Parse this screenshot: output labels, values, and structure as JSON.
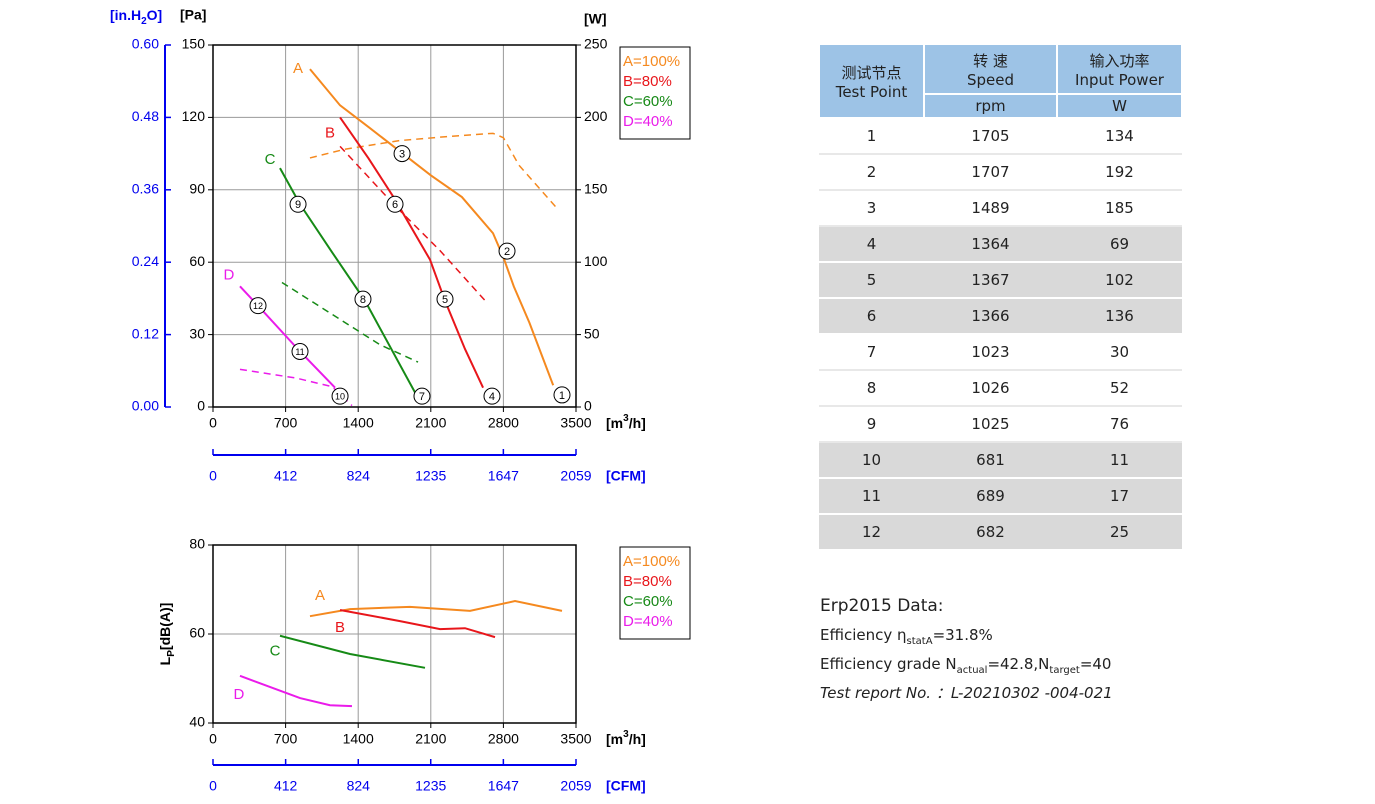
{
  "chart_data": [
    {
      "type": "line",
      "xlabel": [
        "[m",
        "3",
        "/h]"
      ],
      "xlim": [
        0,
        3500
      ],
      "xticks": [
        0,
        700,
        1400,
        2100,
        2800,
        3500
      ],
      "ylabel": "[Pa]",
      "ylim": [
        0,
        150
      ],
      "yticks": [
        0,
        30,
        60,
        90,
        120,
        150
      ],
      "y_alt_label": [
        "[in.H",
        "2",
        "O]"
      ],
      "y_alt_lim": [
        0,
        0.6
      ],
      "y_alt_ticks": [
        {
          "value": 0,
          "label": "0.00"
        },
        0.12,
        0.24,
        0.36,
        0.48,
        {
          "value": 0.6,
          "label": "0.60"
        }
      ],
      "y2label": "[W]",
      "y2lim": [
        0,
        250
      ],
      "y2ticks": [
        0,
        50,
        100,
        150,
        200,
        250
      ],
      "x_alt_label": "[CFM]",
      "x_alt_lim": [
        0,
        2059
      ],
      "x_alt_ticks": [
        0,
        412,
        824,
        1235,
        1647,
        2059
      ],
      "grid": true,
      "series": [
        {
          "label": "A",
          "name": "A=100%",
          "color": "#f5891f",
          "x": [
            935,
            1225,
            1500,
            1800,
            2100,
            2400,
            2700,
            2800,
            2900,
            3050,
            3280
          ],
          "values": [
            140,
            125,
            116,
            106,
            96,
            87,
            72,
            62,
            50,
            35,
            9
          ],
          "power": {
            "x": [
              935,
              1270,
              1800,
              2300,
              2700,
              2800,
              2950,
              3320
            ],
            "values": [
              172,
              178,
              184,
              187,
              189,
              186,
              167,
              137
            ]
          }
        },
        {
          "label": "B",
          "name": "B=80%",
          "color": "#e8161b",
          "x": [
            1225,
            1500,
            1755,
            2093,
            2237,
            2430,
            2604
          ],
          "values": [
            120,
            103,
            86,
            61,
            44,
            24,
            8
          ],
          "power": {
            "x": [
              1225,
              1755,
              2189,
              2642
            ],
            "values": [
              180,
              139,
              108,
              72
            ]
          }
        },
        {
          "label": "C",
          "name": "C=60%",
          "color": "#168a16",
          "x": [
            646,
            839,
            1150,
            1466,
            1948
          ],
          "values": [
            99,
            84,
            64,
            44,
            6
          ],
          "power": {
            "x": [
              665,
              1610,
              1977
            ],
            "values": [
              86,
              43,
              31
            ]
          }
        },
        {
          "label": "D",
          "name": "D=40%",
          "color": "#ea1bea",
          "x": [
            260,
            434,
            839,
            1177
          ],
          "values": [
            50,
            42,
            23,
            8
          ],
          "power": {
            "x": [
              260,
              800,
              1150,
              1340
            ],
            "values": [
              26,
              20,
              14,
              1
            ]
          }
        }
      ],
      "points": [
        {
          "label": "1",
          "x": 3365,
          "y": 5
        },
        {
          "label": "2",
          "x": 2835,
          "y": 64.6
        },
        {
          "label": "3",
          "x": 1823,
          "y": 105
        },
        {
          "label": "4",
          "x": 2690,
          "y": 4.5
        },
        {
          "label": "5",
          "x": 2237,
          "y": 44.7
        },
        {
          "label": "6",
          "x": 1755,
          "y": 84
        },
        {
          "label": "7",
          "x": 2015,
          "y": 4.5
        },
        {
          "label": "8",
          "x": 1446,
          "y": 44.7
        },
        {
          "label": "9",
          "x": 820,
          "y": 84
        },
        {
          "label": "10",
          "x": 1225,
          "y": 4.5
        },
        {
          "label": "11",
          "x": 839,
          "y": 23
        },
        {
          "label": "12",
          "x": 434,
          "y": 42
        }
      ]
    },
    {
      "type": "line",
      "xlabel": [
        "[m",
        "3",
        "/h]"
      ],
      "xlim": [
        0,
        3500
      ],
      "xticks": [
        0,
        700,
        1400,
        2100,
        2800,
        3500
      ],
      "ylabel": [
        "L",
        "P",
        "[dB(A)]"
      ],
      "ylim": [
        40,
        80
      ],
      "yticks": [
        40,
        60,
        80
      ],
      "x_alt_label": "[CFM]",
      "x_alt_lim": [
        0,
        2059
      ],
      "x_alt_ticks": [
        0,
        412,
        824,
        1235,
        1647,
        2059
      ],
      "grid": true,
      "series": [
        {
          "label": "A",
          "name": "A=100%",
          "color": "#f5891f",
          "x": [
            935,
            1321,
            1900,
            2478,
            2912,
            3365
          ],
          "values": [
            64.0,
            65.6,
            66.1,
            65.2,
            67.4,
            65.2
          ]
        },
        {
          "label": "B",
          "name": "B=80%",
          "color": "#e8161b",
          "x": [
            1225,
            1803,
            2189,
            2430,
            2719
          ],
          "values": [
            65.4,
            62.9,
            61.1,
            61.3,
            59.3
          ]
        },
        {
          "label": "C",
          "name": "C=60%",
          "color": "#168a16",
          "x": [
            646,
            1321,
            2044
          ],
          "values": [
            59.6,
            55.5,
            52.4
          ]
        },
        {
          "label": "D",
          "name": "D=40%",
          "color": "#ea1bea",
          "x": [
            260,
            839,
            1128,
            1340
          ],
          "values": [
            50.6,
            45.6,
            44.0,
            43.8
          ]
        }
      ]
    }
  ],
  "table": {
    "header": [
      [
        "测试节点",
        "Test Point"
      ],
      [
        "转 速",
        "Speed",
        "rpm"
      ],
      [
        "输入功率",
        "Input Power",
        "W"
      ]
    ],
    "rows": [
      [
        1,
        1705,
        134
      ],
      [
        2,
        1707,
        192
      ],
      [
        3,
        1489,
        185
      ],
      [
        4,
        1364,
        69
      ],
      [
        5,
        1367,
        102
      ],
      [
        6,
        1366,
        136
      ],
      [
        7,
        1023,
        30
      ],
      [
        8,
        1026,
        52
      ],
      [
        9,
        1025,
        76
      ],
      [
        10,
        681,
        11
      ],
      [
        11,
        689,
        17
      ],
      [
        12,
        682,
        25
      ]
    ]
  },
  "notes": [
    [
      "Erp2015  Data:"
    ],
    [
      "Efficiency η",
      {
        "sub": "statA"
      },
      "=31.8%"
    ],
    [
      "Efficiency grade  N",
      {
        "sub": "actual"
      },
      "=42.8,N",
      {
        "sub": "target"
      },
      "=40"
    ]
  ],
  "report": "Test report No. ：L-20210302 -004-021"
}
